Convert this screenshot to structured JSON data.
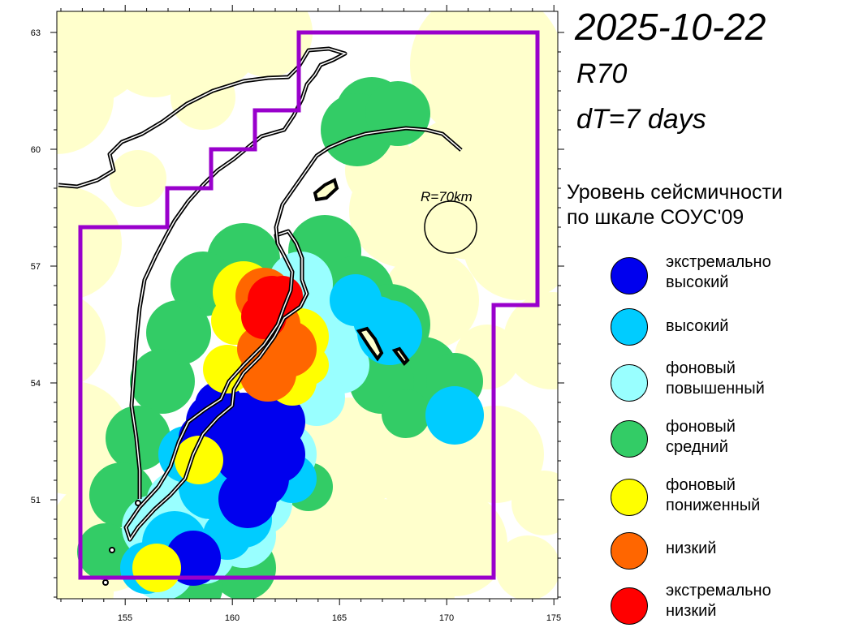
{
  "header": {
    "date": "2025-10-22",
    "radius_code": "R70",
    "period": "dT=7 days"
  },
  "map": {
    "x_ticks": [
      "155",
      "160",
      "165",
      "170",
      "175"
    ],
    "y_ticks": [
      "51",
      "54",
      "57",
      "60",
      "63"
    ],
    "scale_label": "R=70km",
    "colors": {
      "land": "#FFFFCC",
      "sea": "#FFFFFF",
      "zone_border": "#9900CC",
      "coastline": "#000000"
    }
  },
  "legend": {
    "title": "Уровень сейсмичности\nпо шкале СОУС'09",
    "items": [
      {
        "label": "экстремально\nвысокий",
        "color": "#0000EE"
      },
      {
        "label": "высокий",
        "color": "#00CCFF"
      },
      {
        "label": "фоновый\nповышенный",
        "color": "#99FFFF"
      },
      {
        "label": "фоновый\nсредний",
        "color": "#33CC66"
      },
      {
        "label": "фоновый\nпониженный",
        "color": "#FFFF00"
      },
      {
        "label": "низкий",
        "color": "#FF6600"
      },
      {
        "label": "экстремально\nнизкий",
        "color": "#FF0000"
      }
    ]
  }
}
